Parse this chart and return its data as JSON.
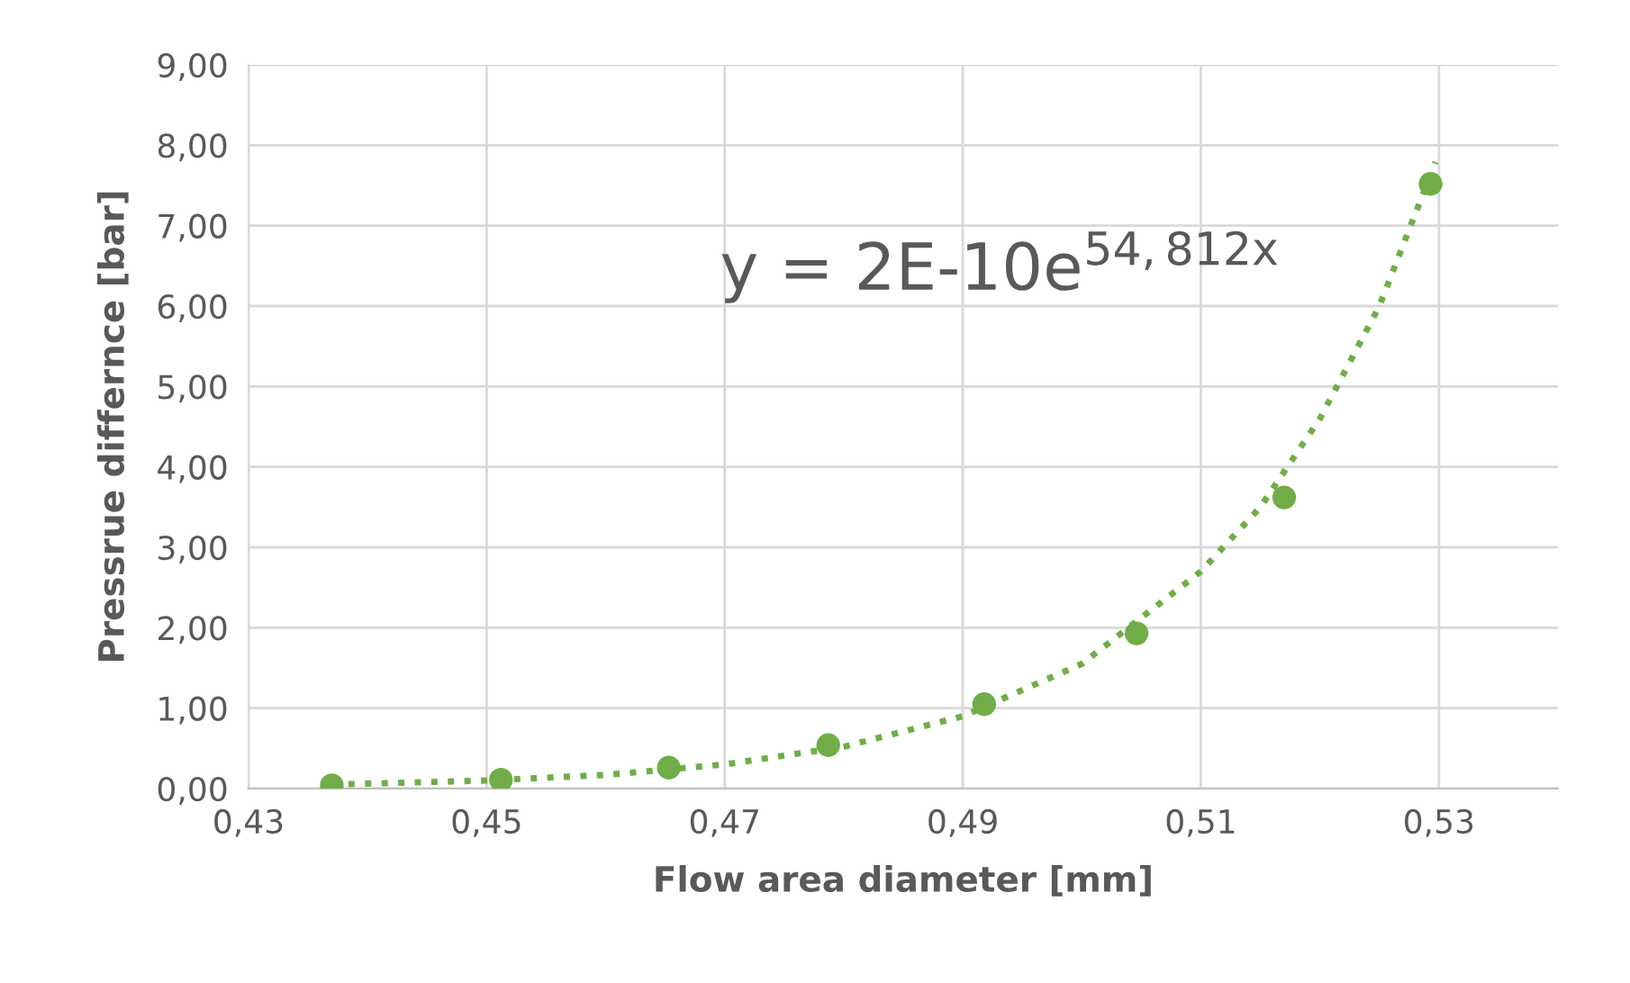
{
  "chart_data": {
    "type": "scatter",
    "xlabel": "Flow area diameter [mm]",
    "ylabel": "Pressrue differnce [bar]",
    "annotations": [
      "y = 2E-10e$^{54,812x}$"
    ],
    "xlim": [
      0.43,
      0.54
    ],
    "ylim": [
      0,
      9
    ],
    "xticks": [
      {
        "value": 0.43,
        "label": "0,43"
      },
      {
        "value": 0.45,
        "label": "0,45"
      },
      {
        "value": 0.47,
        "label": "0,47"
      },
      {
        "value": 0.49,
        "label": "0,49"
      },
      {
        "value": 0.51,
        "label": "0,51"
      },
      {
        "value": 0.53,
        "label": "0,53"
      }
    ],
    "yticks": [
      {
        "value": 0,
        "label": "0,00"
      },
      {
        "value": 1,
        "label": "1,00"
      },
      {
        "value": 2,
        "label": "2,00"
      },
      {
        "value": 3,
        "label": "3,00"
      },
      {
        "value": 4,
        "label": "4,00"
      },
      {
        "value": 5,
        "label": "5,00"
      },
      {
        "value": 6,
        "label": "6,00"
      },
      {
        "value": 7,
        "label": "7,00"
      },
      {
        "value": 8,
        "label": "8,00"
      },
      {
        "value": 9,
        "label": "9,00"
      }
    ],
    "grid": true,
    "legend": false,
    "series": [
      {
        "marker": "circle",
        "color": "#70ad47",
        "x": [
          0.437,
          0.4512,
          0.4653,
          0.4787,
          0.4918,
          0.5046,
          0.517,
          0.5293
        ],
        "values": [
          0.04,
          0.11,
          0.26,
          0.54,
          1.05,
          1.93,
          3.62,
          7.52
        ]
      },
      {
        "type": "line",
        "marker": "none",
        "line_style": "dotted",
        "color": "#70ad47",
        "x": [
          0.437,
          0.45,
          0.46,
          0.47,
          0.48,
          0.49,
          0.5,
          0.51,
          0.515,
          0.52,
          0.525,
          0.5297
        ],
        "values": [
          0.05,
          0.1,
          0.17,
          0.3,
          0.52,
          0.9,
          1.55,
          2.7,
          3.5,
          4.6,
          6.0,
          7.79
        ]
      }
    ]
  }
}
